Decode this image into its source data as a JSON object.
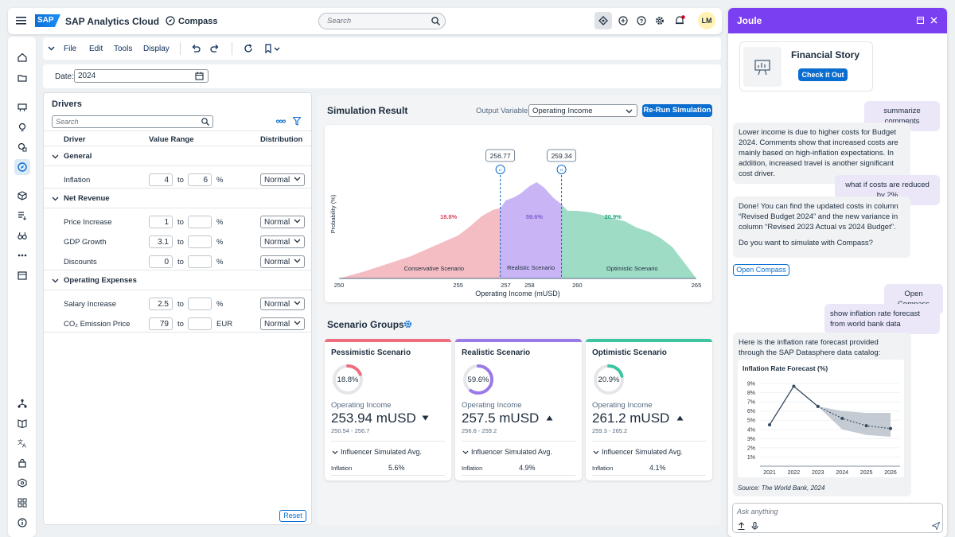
{
  "shell": {
    "brand_logo": "SAP",
    "product": "SAP Analytics Cloud",
    "app": "Compass",
    "search_placeholder": "Search",
    "avatar_initials": "LM"
  },
  "menu": {
    "file": "File",
    "edit": "Edit",
    "tools": "Tools",
    "display": "Display"
  },
  "date_filter": {
    "label": "Date:",
    "value": "2024"
  },
  "drivers": {
    "title": "Drivers",
    "search_placeholder": "Search",
    "columns": {
      "driver": "Driver",
      "range": "Value Range",
      "distribution": "Distribution"
    },
    "groups": [
      {
        "name": "General",
        "rows": [
          {
            "name": "Inflation",
            "from": "4",
            "to_label": "to",
            "to": "6",
            "unit": "%",
            "dist": "Normal"
          }
        ]
      },
      {
        "name": "Net Revenue",
        "rows": [
          {
            "name": "Price Increase",
            "from": "1",
            "to_label": "to",
            "to": "",
            "unit": "%",
            "dist": "Normal"
          },
          {
            "name": "GDP Growth",
            "from": "3.1",
            "to_label": "to",
            "to": "",
            "unit": "%",
            "dist": "Normal"
          },
          {
            "name": "Discounts",
            "from": "0",
            "to_label": "to",
            "to": "",
            "unit": "%",
            "dist": "Normal"
          }
        ]
      },
      {
        "name": "Operating Expenses",
        "rows": [
          {
            "name": "Salary Increase",
            "from": "2.5",
            "to_label": "to",
            "to": "",
            "unit": "%",
            "dist": "Normal"
          },
          {
            "name": "CO₂ Emission Price",
            "from": "79",
            "to_label": "to",
            "to": "",
            "unit": "EUR",
            "dist": "Normal"
          }
        ]
      }
    ],
    "reset_label": "Reset"
  },
  "simulation": {
    "title": "Simulation Result",
    "output_label": "Output Variable:",
    "output_value": "Operating Income",
    "rerun_label": "Re-Run Simulation"
  },
  "chart_data": [
    {
      "type": "area",
      "title": "",
      "xlabel": "Operating Income (mUSD)",
      "ylabel": "Probability (%)",
      "xlim": [
        250,
        265
      ],
      "x_ticks": [
        "250",
        "255",
        "257",
        "258",
        "260",
        "265"
      ],
      "thresholds": [
        {
          "value": 256.77,
          "label": "256.77"
        },
        {
          "value": 259.34,
          "label": "259.34"
        }
      ],
      "regions": [
        {
          "name": "Conservative Scenario",
          "share": "18.8%",
          "color": "#f4bcc3",
          "text_color": "#d9485f"
        },
        {
          "name": "Realistic Scenario",
          "share": "59.6%",
          "color": "#c9b5f5",
          "text_color": "#7a5cd1"
        },
        {
          "name": "Optimistic Scenario",
          "share": "20.9%",
          "color": "#9fdcc6",
          "text_color": "#1aa37a"
        }
      ],
      "x": [
        250,
        251,
        252,
        253,
        254,
        255,
        255.5,
        256,
        256.5,
        256.77,
        257,
        257.3,
        257.6,
        257.8,
        258,
        258.3,
        258.6,
        259,
        259.34,
        259.6,
        260,
        260.5,
        261,
        261.5,
        262,
        262.5,
        263,
        263.5,
        264,
        264.5,
        265
      ],
      "y": [
        0,
        5,
        11,
        17,
        25,
        33,
        40,
        48,
        53,
        54,
        60,
        62,
        65,
        68,
        71,
        74,
        70,
        62,
        57,
        52,
        52,
        51,
        49,
        46,
        44,
        39,
        36,
        31,
        24,
        12,
        0
      ]
    },
    {
      "type": "line",
      "title": "Inflation Rate Forecast (%)",
      "categories": [
        "2021",
        "2022",
        "2023",
        "2024",
        "2025",
        "2026"
      ],
      "ylim": [
        0,
        9
      ],
      "y_ticks": [
        "1%",
        "2%",
        "3%",
        "4%",
        "5%",
        "6%",
        "7%",
        "8%",
        "9%"
      ],
      "series": [
        {
          "values": [
            4.5,
            8.7,
            6.5,
            null,
            null,
            null
          ]
        },
        {
          "values": [
            null,
            null,
            6.5,
            5.2,
            4.4,
            4.1
          ]
        }
      ],
      "band_upper": [
        null,
        null,
        6.5,
        6.0,
        5.8,
        5.8
      ],
      "band_lower": [
        null,
        null,
        6.5,
        4.0,
        3.4,
        3.2
      ],
      "source": "Source: The World Bank, 2024"
    }
  ],
  "scenario_groups": {
    "title": "Scenario Groups",
    "cards": [
      {
        "title": "Pessimistic Scenario",
        "color": "#ee6d7e",
        "pct": "18.8%",
        "fraction": 0.188,
        "metric_label": "Operating Income",
        "value": "253.94 mUSD",
        "trend": "down",
        "range": "250.54 - 256.7",
        "influencer_label": "Influencer Simulated Avg.",
        "inf_name": "Inflation",
        "inf_value": "5.6%"
      },
      {
        "title": "Realistic Scenario",
        "color": "#9a79e8",
        "pct": "59.6%",
        "fraction": 0.596,
        "metric_label": "Operating Income",
        "value": "257.5 mUSD",
        "trend": "up",
        "range": "256.6 - 259.2",
        "influencer_label": "Influencer Simulated Avg.",
        "inf_name": "Inflation",
        "inf_value": "4.9%"
      },
      {
        "title": "Optimistic Scenario",
        "color": "#3dc4a0",
        "pct": "20.9%",
        "fraction": 0.209,
        "metric_label": "Operating Income",
        "value": "261.2 mUSD",
        "trend": "up",
        "range": "259.3 - 265.2",
        "influencer_label": "Influencer Simulated Avg.",
        "inf_name": "Inflation",
        "inf_value": "4.1%"
      }
    ]
  },
  "joule": {
    "title": "Joule",
    "story_card": {
      "title": "Financial Story",
      "button": "Check it Out"
    },
    "messages": [
      {
        "role": "user",
        "text": "summarize comments"
      },
      {
        "role": "bot",
        "text": "Lower income is due to higher costs for Budget 2024. Comments show that increased costs are mainly based on high-inflation expectations. In addition, increased travel is another significant cost driver."
      },
      {
        "role": "user",
        "text": "what if costs are reduced by 2%"
      },
      {
        "role": "bot",
        "text": "Done! You can find the updated costs in column “Revised Budget 2024” and the new variance in column “Revised 2023 Actual vs 2024 Budget”."
      },
      {
        "role": "bot",
        "text": "Do you want to simulate with Compass?"
      },
      {
        "role": "user",
        "text": "Open Compass"
      },
      {
        "role": "user",
        "text": "show inflation rate forecast from world bank data"
      },
      {
        "role": "bot",
        "text": "Here is the inflation rate forecast provided through the SAP Datasphere data catalog:"
      }
    ],
    "open_compass_button": "Open Compass",
    "input_placeholder": "Ask anything"
  }
}
